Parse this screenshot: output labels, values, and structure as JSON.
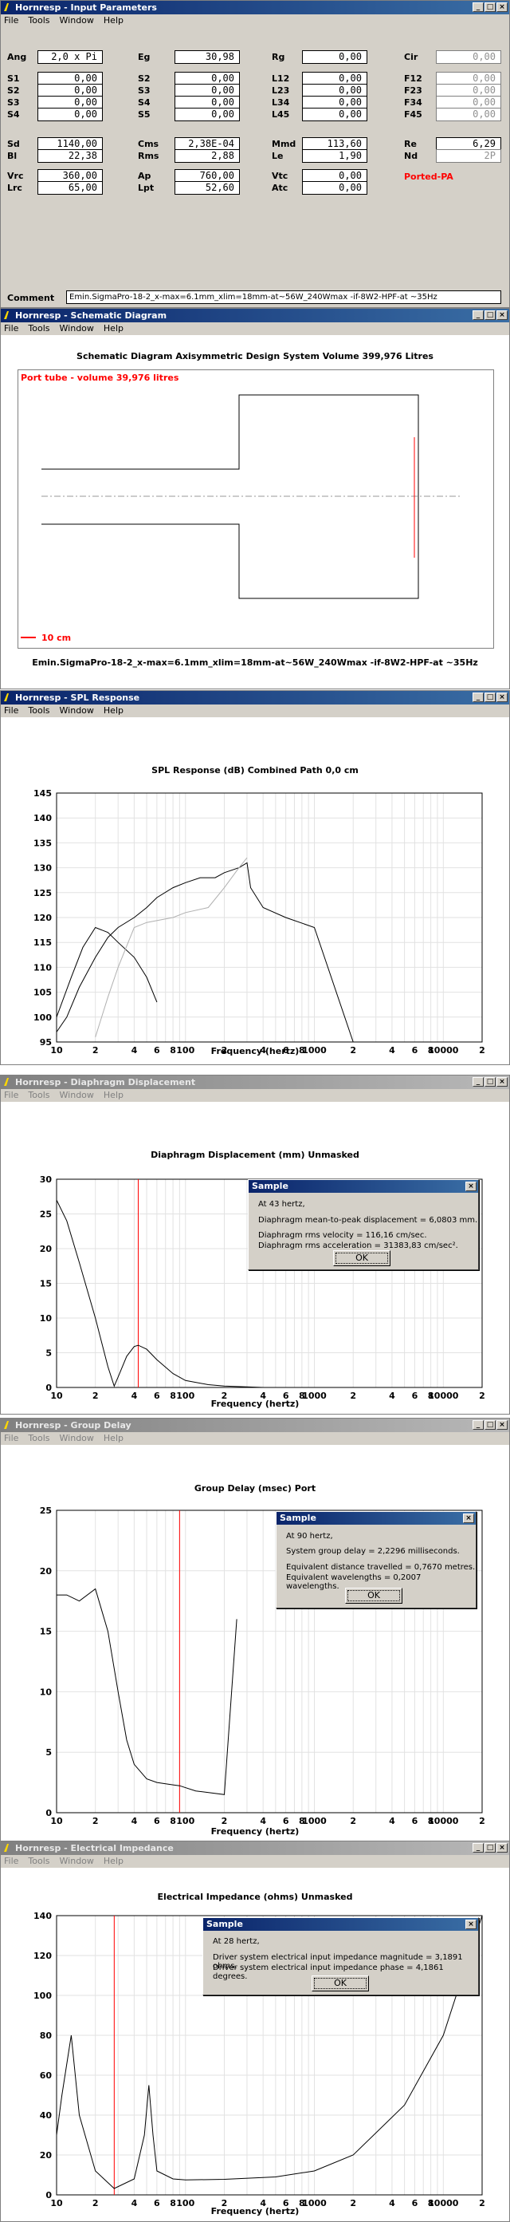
{
  "menu": [
    "File",
    "Tools",
    "Window",
    "Help"
  ],
  "input_params": {
    "title": "Hornresp - Input Parameters",
    "rows": [
      [
        [
          "Ang",
          "2,0 x Pi",
          ""
        ],
        [
          "Eg",
          "30,98",
          ""
        ],
        [
          "Rg",
          "0,00",
          ""
        ],
        [
          "Cir",
          "0,00",
          "gray"
        ]
      ],
      [
        [
          "S1",
          "0,00",
          ""
        ],
        [
          "S2",
          "0,00",
          ""
        ],
        [
          "L12",
          "0,00",
          ""
        ],
        [
          "F12",
          "0,00",
          "gray"
        ]
      ],
      [
        [
          "S2",
          "0,00",
          ""
        ],
        [
          "S3",
          "0,00",
          ""
        ],
        [
          "L23",
          "0,00",
          ""
        ],
        [
          "F23",
          "0,00",
          "gray"
        ]
      ],
      [
        [
          "S3",
          "0,00",
          ""
        ],
        [
          "S4",
          "0,00",
          ""
        ],
        [
          "L34",
          "0,00",
          ""
        ],
        [
          "F34",
          "0,00",
          "gray"
        ]
      ],
      [
        [
          "S4",
          "0,00",
          ""
        ],
        [
          "S5",
          "0,00",
          ""
        ],
        [
          "L45",
          "0,00",
          ""
        ],
        [
          "F45",
          "0,00",
          "gray"
        ]
      ],
      [
        [
          "Sd",
          "1140,00",
          ""
        ],
        [
          "Cms",
          "2,38E-04",
          ""
        ],
        [
          "Mmd",
          "113,60",
          ""
        ],
        [
          "Re",
          "6,29",
          ""
        ]
      ],
      [
        [
          "Bl",
          "22,38",
          ""
        ],
        [
          "Rms",
          "2,88",
          ""
        ],
        [
          "Le",
          "1,90",
          ""
        ],
        [
          "Nd",
          "2P",
          "gray"
        ]
      ],
      [
        [
          "Vrc",
          "360,00",
          ""
        ],
        [
          "Ap",
          "760,00",
          ""
        ],
        [
          "Vtc",
          "0,00",
          ""
        ]
      ],
      [
        [
          "Lrc",
          "65,00",
          ""
        ],
        [
          "Lpt",
          "52,60",
          ""
        ],
        [
          "Atc",
          "0,00",
          ""
        ]
      ]
    ],
    "ported_label": "Ported-PA",
    "comment_label": "Comment",
    "comment": "Emin.SigmaPro-18-2_x-max=6.1mm_xlim=18mm-at~56W_240Wmax -if-8W2-HPF-at ~35Hz"
  },
  "schematic": {
    "title": "Hornresp - Schematic Diagram",
    "heading": "Schematic Diagram    Axisymmetric Design    System Volume 399,976 Litres",
    "port_label": "Port tube - volume 39,976 litres",
    "scale_label": "10 cm",
    "caption": "Emin.SigmaPro-18-2_x-max=6.1mm_xlim=18mm-at~56W_240Wmax -if-8W2-HPF-at ~35Hz"
  },
  "spl": {
    "title": "Hornresp - SPL Response",
    "heading": "SPL Response (dB)    Combined    Path 0,0 cm",
    "xlabel": "Frequency (hertz)"
  },
  "disp": {
    "title": "Hornresp - Diaphragm Displacement",
    "heading": "Diaphragm Displacement (mm)    Unmasked",
    "xlabel": "Frequency (hertz)",
    "dialog": {
      "title": "Sample",
      "lines": [
        "At 43 hertz,",
        "Diaphragm mean-to-peak displacement = 6,0803 mm.",
        "Diaphragm rms velocity = 116,16 cm/sec.",
        "Diaphragm rms acceleration = 31383,83 cm/sec².",
        "OK"
      ]
    }
  },
  "gd": {
    "title": "Hornresp - Group Delay",
    "heading": "Group Delay (msec)    Port",
    "xlabel": "Frequency (hertz)",
    "dialog": {
      "title": "Sample",
      "lines": [
        "At 90 hertz,",
        "System group delay = 2,2296 milliseconds.",
        "Equivalent distance travelled = 0,7670 metres.",
        "Equivalent wavelengths = 0,2007 wavelengths.",
        "OK"
      ]
    }
  },
  "imp": {
    "title": "Hornresp - Electrical Impedance",
    "heading": "Electrical Impedance (ohms)    Unmasked",
    "xlabel": "Frequency (hertz)",
    "dialog": {
      "title": "Sample",
      "lines": [
        "At 28 hertz,",
        "Driver system electrical input impedance magnitude = 3,1891 ohms.",
        "Driver system electrical input impedance phase = 4,1861 degrees.",
        "OK"
      ]
    }
  },
  "chart_data": [
    {
      "type": "line",
      "title": "SPL Response (dB)    Combined    Path 0,0 cm",
      "xlabel": "Frequency (hertz)",
      "ylabel": "",
      "xscale": "log",
      "xlim": [
        10,
        20000
      ],
      "ylim": [
        95,
        145
      ],
      "xticks": [
        "10",
        "2",
        "4",
        "6",
        "8",
        "100",
        "2",
        "4",
        "6",
        "8",
        "1000",
        "2",
        "4",
        "6",
        "8",
        "10000",
        "2"
      ],
      "yticks": [
        95,
        100,
        105,
        110,
        115,
        120,
        125,
        130,
        135,
        140,
        145
      ],
      "series": [
        {
          "x": [
            10,
            12,
            15,
            20,
            25,
            30,
            40,
            50,
            60,
            80,
            100,
            130,
            150,
            170,
            200,
            260,
            300,
            320,
            400,
            600,
            1000,
            2000
          ],
          "y": [
            97,
            100,
            106,
            112,
            116,
            118,
            120,
            122,
            124,
            126,
            127,
            128,
            128,
            128,
            129,
            130,
            131,
            126,
            122,
            120,
            118,
            95
          ]
        },
        {
          "x": [
            10,
            13,
            16,
            20,
            25,
            30,
            40,
            50,
            60
          ],
          "y": [
            100,
            108,
            114,
            118,
            117,
            115,
            112,
            108,
            103
          ]
        },
        {
          "x": [
            20,
            25,
            30,
            40,
            50,
            80,
            100,
            150,
            200,
            260,
            300
          ],
          "y": [
            96,
            104,
            110,
            118,
            119,
            120,
            121,
            122,
            126,
            130,
            132
          ]
        }
      ],
      "grid": true
    },
    {
      "type": "line",
      "title": "Diaphragm Displacement (mm)    Unmasked",
      "xlabel": "Frequency (hertz)",
      "ylabel": "",
      "xscale": "log",
      "xlim": [
        10,
        20000
      ],
      "ylim": [
        0,
        30
      ],
      "xticks": [
        "10",
        "2",
        "4",
        "6",
        "8",
        "100",
        "2",
        "4",
        "6",
        "8",
        "1000",
        "2",
        "4",
        "6",
        "8",
        "10000",
        "2"
      ],
      "yticks": [
        0,
        5,
        10,
        15,
        20,
        25,
        30
      ],
      "series": [
        {
          "x": [
            10,
            12,
            15,
            20,
            25,
            28,
            30,
            35,
            40,
            43,
            50,
            60,
            80,
            100,
            150,
            200,
            400
          ],
          "y": [
            27,
            24,
            18,
            10,
            3,
            0.2,
            1.5,
            4.5,
            5.9,
            6.08,
            5.5,
            4,
            2,
            1,
            0.4,
            0.2,
            0
          ]
        }
      ],
      "marker_x": 43,
      "grid": true
    },
    {
      "type": "line",
      "title": "Group Delay (msec)    Port",
      "xlabel": "Frequency (hertz)",
      "ylabel": "",
      "xscale": "log",
      "xlim": [
        10,
        20000
      ],
      "ylim": [
        0,
        25
      ],
      "xticks": [
        "10",
        "2",
        "4",
        "6",
        "8",
        "100",
        "2",
        "4",
        "6",
        "8",
        "1000",
        "2",
        "4",
        "6",
        "8",
        "10000",
        "2"
      ],
      "yticks": [
        0,
        5,
        10,
        15,
        20,
        25
      ],
      "series": [
        {
          "x": [
            10,
            12,
            15,
            20,
            25,
            30,
            35,
            40,
            50,
            60,
            80,
            90,
            120,
            200,
            250
          ],
          "y": [
            18,
            18,
            17.5,
            18.5,
            15,
            10,
            6,
            4,
            2.8,
            2.5,
            2.3,
            2.23,
            1.8,
            1.5,
            16
          ]
        }
      ],
      "marker_x": 90,
      "grid": true
    },
    {
      "type": "line",
      "title": "Electrical Impedance (ohms)    Unmasked",
      "xlabel": "Frequency (hertz)",
      "ylabel": "",
      "xscale": "log",
      "xlim": [
        10,
        20000
      ],
      "ylim": [
        0,
        140
      ],
      "xticks": [
        "10",
        "2",
        "4",
        "6",
        "8",
        "100",
        "2",
        "4",
        "6",
        "8",
        "1000",
        "2",
        "4",
        "6",
        "8",
        "10000",
        "2"
      ],
      "yticks": [
        0,
        20,
        40,
        60,
        80,
        100,
        120,
        140
      ],
      "series": [
        {
          "x": [
            10,
            11,
            13,
            15,
            20,
            28,
            40,
            48,
            52,
            56,
            60,
            80,
            100,
            200,
            500,
            1000,
            2000,
            5000,
            10000,
            20000
          ],
          "y": [
            30,
            50,
            80,
            40,
            12,
            3.2,
            8,
            30,
            55,
            30,
            12,
            8,
            7.5,
            7.8,
            9,
            12,
            20,
            45,
            80,
            140
          ]
        }
      ],
      "marker_x": 28,
      "grid": true
    }
  ]
}
